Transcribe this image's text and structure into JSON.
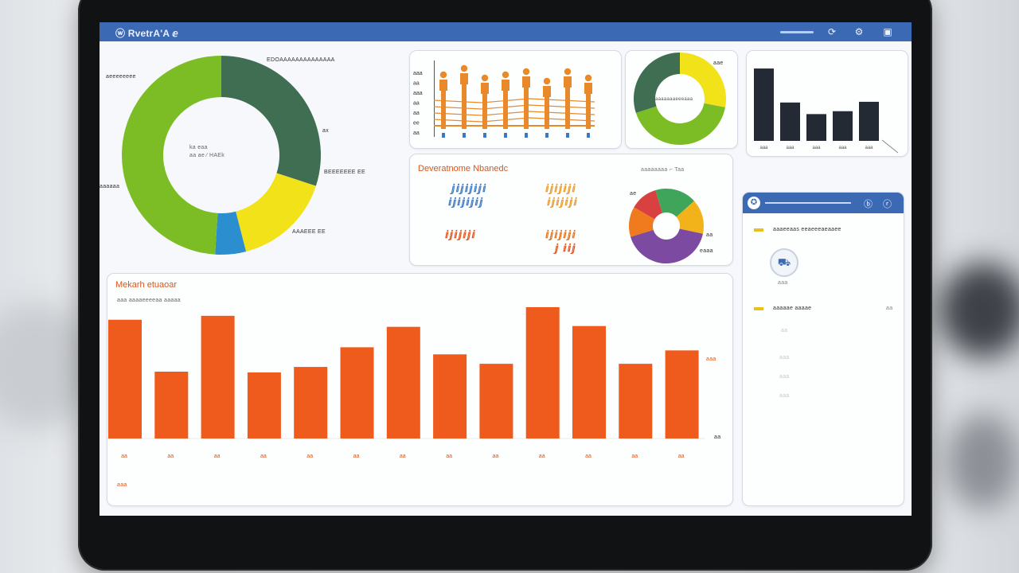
{
  "app": {
    "title": "ⓦ RvetrA'A ⅇ"
  },
  "topbar": {
    "icons": [
      "refresh-icon",
      "user-icon",
      "window-icon"
    ]
  },
  "donut_main": {
    "labels_left": [
      "aeeeeeeee",
      "aaaaaa"
    ],
    "labels_right": [
      "EDOAAAAAAAAAAAAAA",
      "ax",
      "BEEEEEEE EE",
      "AAAEEE EE"
    ],
    "center_text": [
      "ka eaa",
      "aa ae ⁄ HAEk"
    ],
    "colors": [
      "#3f6e53",
      "#f2e21a",
      "#2b8fcf",
      "#7cbd25"
    ]
  },
  "people_chart": {
    "ylabels": [
      "aaa",
      "aa",
      "aaa",
      "aa",
      "aa",
      "ee",
      "aa"
    ],
    "color": "#e88a2c"
  },
  "donut_small": {
    "label_right": "aae",
    "center_text": "aaaaaaaeeeaaa",
    "colors": [
      "#3f6e53",
      "#f2e21a",
      "#7cbd25"
    ]
  },
  "bar_dark": {
    "categories": [
      "aaa",
      "aaa",
      "aaa",
      "aaa",
      "aaa"
    ],
    "color": "#242a33"
  },
  "demographics": {
    "title": "Deveratnome Nbanedc",
    "figures": [
      "ⅉⅈⅉⅈⅉⅈⅉⅈ",
      "ⅈⅉⅈⅉⅈⅉⅈⅉ",
      "ⅈⅉⅈⅉⅈⅉⅈ",
      "ⅈⅉⅈⅉⅈⅉⅈ",
      "ⅈⅉⅈⅉⅈⅉⅈ",
      "ⅈⅉⅈⅉⅈⅉⅈ"
    ],
    "figure_sub": "ⅉ ⅈⅈⅉ",
    "pie_label_top": "aaaaaaaa ⌐ Taa",
    "pie_label_left": "ae",
    "pie_label_right": "aa",
    "pie_label_bottom": "eaaa",
    "pie_colors": [
      "#f07a1e",
      "#3fa55a",
      "#f2b21a",
      "#7c4aa1",
      "#d94141"
    ]
  },
  "monthly": {
    "title": "Mekarh etuaoar",
    "subtitle": "aaa aaaaeeeeaa aaaaa",
    "right_labels": [
      "aaa",
      "aa"
    ],
    "note": "aaa",
    "color": "#ef5a1d"
  },
  "side_panel": {
    "header_icons": [
      "badge-icon",
      "ⓑ",
      "ⓡ"
    ],
    "section1": "aaaeeaas eeaeeeaeaaee",
    "avatar_caption": "aaa",
    "section2": "aaaaae aaaae",
    "section2_right": "aa",
    "rows": [
      "aa",
      "aaa",
      "aaa",
      "aaa"
    ],
    "accent": "#e8c21a"
  },
  "chart_data": [
    {
      "type": "pie",
      "subtype": "donut",
      "categories": [
        "dark-green",
        "yellow",
        "blue",
        "green"
      ],
      "values": [
        30,
        16,
        5,
        49
      ],
      "colors": [
        "#3f6e53",
        "#f2e21a",
        "#2b8fcf",
        "#7cbd25"
      ]
    },
    {
      "type": "bar",
      "categories": [
        "1",
        "2",
        "3",
        "4",
        "5",
        "6",
        "7",
        "8"
      ],
      "values": [
        9,
        10,
        8.5,
        9,
        9.5,
        8,
        9.5,
        8.5
      ],
      "ylim": [
        0,
        12
      ]
    },
    {
      "type": "pie",
      "subtype": "donut",
      "categories": [
        "yellow",
        "green",
        "dark-green"
      ],
      "values": [
        28,
        42,
        30
      ],
      "colors": [
        "#f2e21a",
        "#7cbd25",
        "#3f6e53"
      ]
    },
    {
      "type": "bar",
      "categories": [
        "aaa",
        "aaa",
        "aaa",
        "aaa",
        "aaa"
      ],
      "values": [
        100,
        53,
        37,
        41,
        54
      ],
      "ylim": [
        0,
        110
      ]
    },
    {
      "type": "pie",
      "subtype": "donut",
      "categories": [
        "red",
        "green",
        "orange",
        "purple",
        "dark-red"
      ],
      "values": [
        12,
        18,
        15,
        42,
        13
      ],
      "colors": [
        "#d94141",
        "#3fa55a",
        "#f2b21a",
        "#7c4aa1",
        "#f07a1e"
      ]
    },
    {
      "type": "bar",
      "categories": [
        "aa",
        "aa",
        "aa",
        "aa",
        "aa",
        "aa",
        "aa",
        "aa",
        "aa",
        "aa",
        "aa",
        "aa",
        "aa"
      ],
      "values": [
        151,
        85,
        156,
        84,
        91,
        116,
        142,
        107,
        95,
        167,
        143,
        95,
        112
      ],
      "ylim": [
        0,
        170
      ]
    }
  ]
}
